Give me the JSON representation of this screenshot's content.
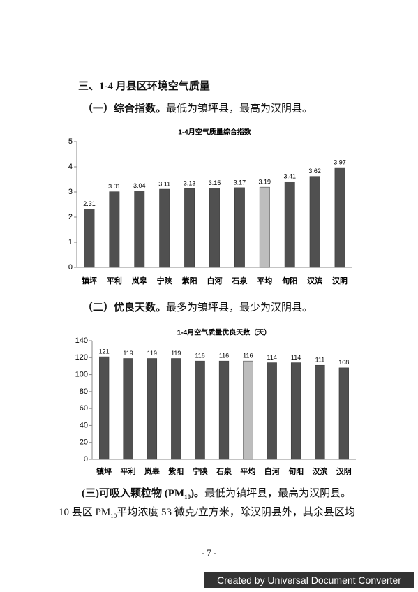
{
  "heading": "三、1-4 月县区环境空气质量",
  "section1": {
    "lead": "（一）综合指数。",
    "text": "最低为镇坪县，最高为汉阴县。"
  },
  "section2": {
    "lead": "（二）优良天数。",
    "text": "最多为镇坪县，最少为汉阴县。"
  },
  "section3": {
    "parts": [
      "(三)可吸入颗粒物 (PM",
      "10",
      ")。",
      "最低为镇坪县，最高为汉阴县。"
    ],
    "line2": [
      "10 县区 PM",
      "10",
      "平均浓度 53 微克/立方米，除汉阴县外，其余县区均"
    ]
  },
  "page_number": "- 7 -",
  "footer": "Created by Universal Document Converter",
  "chart_data": [
    {
      "type": "bar",
      "title": "1-4月空气质量综合指数",
      "categories": [
        "镇坪",
        "平利",
        "岚皋",
        "宁陕",
        "紫阳",
        "白河",
        "石泉",
        "平均",
        "旬阳",
        "汉滨",
        "汉阴"
      ],
      "values": [
        2.31,
        3.01,
        3.04,
        3.11,
        3.13,
        3.15,
        3.17,
        3.19,
        3.41,
        3.62,
        3.97
      ],
      "colors": [
        "#505050",
        "#505050",
        "#505050",
        "#505050",
        "#505050",
        "#505050",
        "#505050",
        "#bdbdbd",
        "#505050",
        "#505050",
        "#505050"
      ],
      "ylim": [
        0,
        5
      ],
      "yticks": [
        0,
        1,
        2,
        3,
        4,
        5
      ],
      "grid": false
    },
    {
      "type": "bar",
      "title": "1-4月空气质量优良天数（天）",
      "categories": [
        "镇坪",
        "平利",
        "岚皋",
        "紫阳",
        "宁陕",
        "石泉",
        "平均",
        "白河",
        "旬阳",
        "汉滨",
        "汉阴"
      ],
      "values": [
        121,
        119,
        119,
        119,
        116,
        116,
        116,
        114,
        114,
        111,
        108
      ],
      "colors": [
        "#505050",
        "#505050",
        "#505050",
        "#505050",
        "#505050",
        "#505050",
        "#bdbdbd",
        "#505050",
        "#505050",
        "#505050",
        "#505050"
      ],
      "ylim": [
        0,
        140
      ],
      "yticks": [
        0,
        20,
        40,
        60,
        80,
        100,
        120,
        140
      ],
      "grid": false
    }
  ]
}
